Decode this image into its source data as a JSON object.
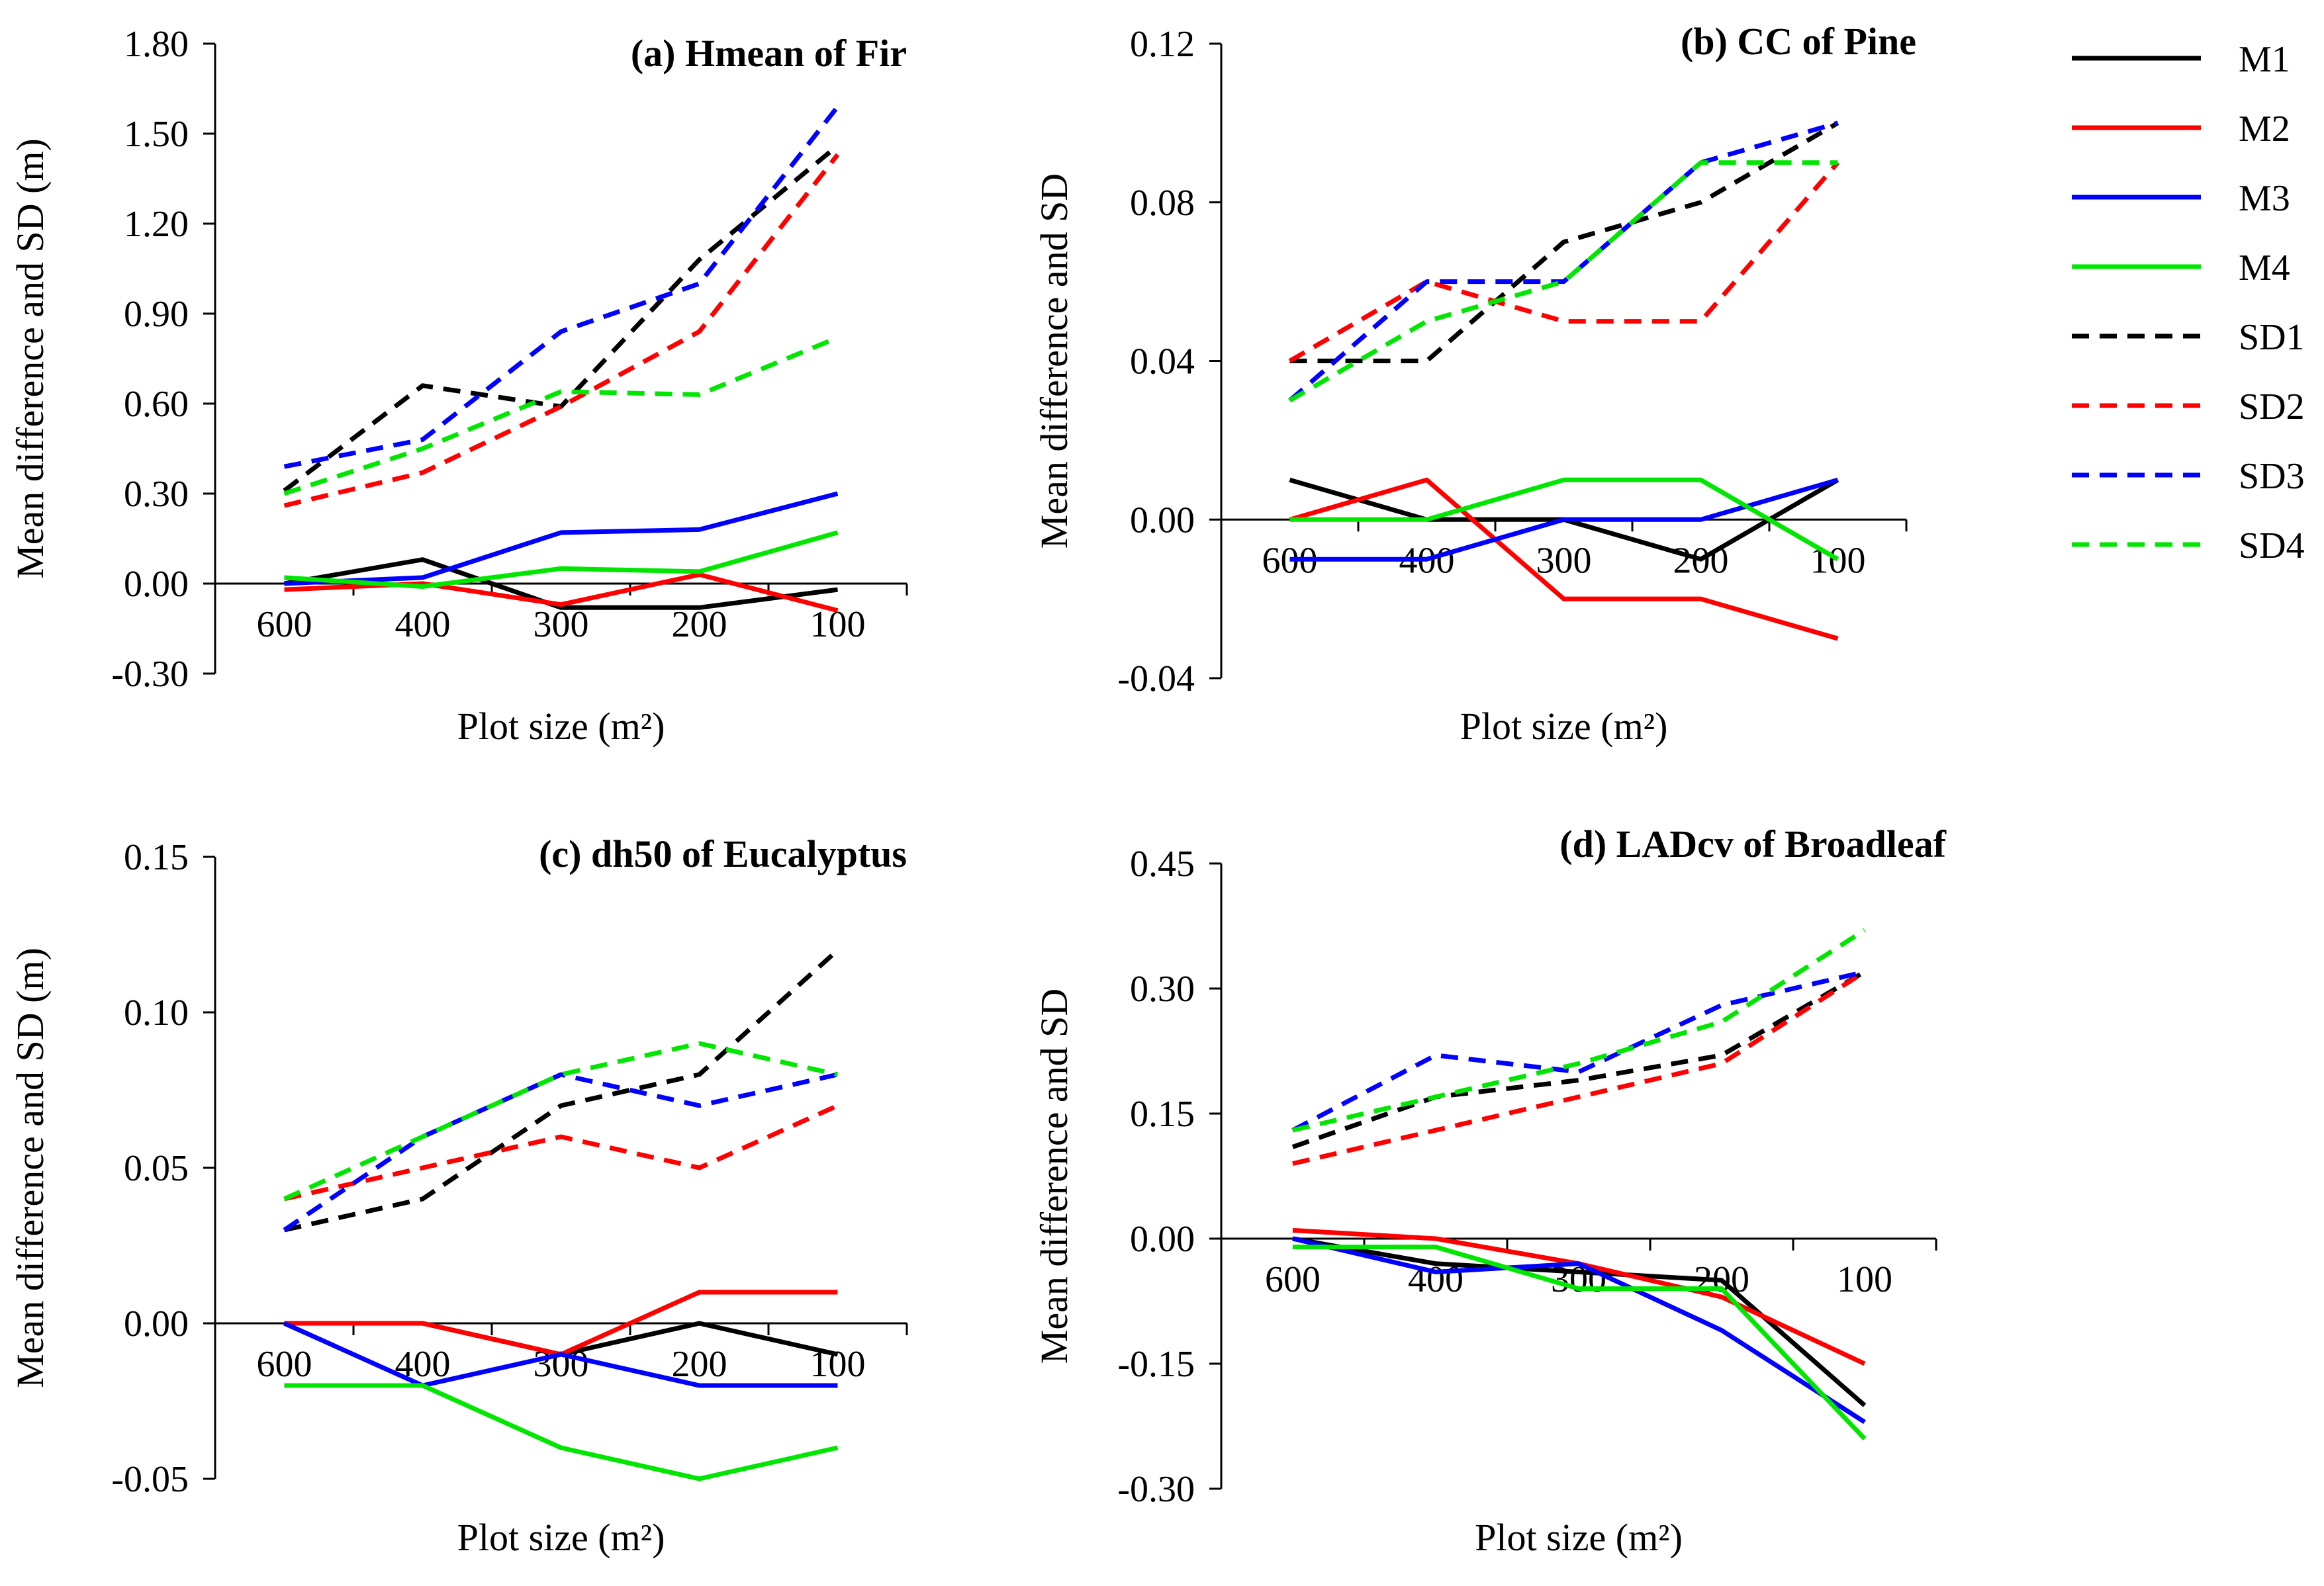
{
  "series_styles": [
    {
      "name": "M1",
      "color": "#000000",
      "dashed": false
    },
    {
      "name": "M2",
      "color": "#ff0000",
      "dashed": false
    },
    {
      "name": "M3",
      "color": "#0000ff",
      "dashed": false
    },
    {
      "name": "M4",
      "color": "#00e600",
      "dashed": false
    },
    {
      "name": "SD1",
      "color": "#000000",
      "dashed": true
    },
    {
      "name": "SD2",
      "color": "#ff0000",
      "dashed": true
    },
    {
      "name": "SD3",
      "color": "#0000ff",
      "dashed": true
    },
    {
      "name": "SD4",
      "color": "#00e600",
      "dashed": true
    }
  ],
  "chart_data": [
    {
      "type": "line",
      "title": "(a) Hmean of Fir",
      "xlabel": "Plot size (m²)",
      "ylabel": "Mean difference and SD (m)",
      "categories": [
        "600",
        "400",
        "300",
        "200",
        "100"
      ],
      "ylim": [
        -0.3,
        1.8
      ],
      "yticks": [
        "1.80",
        "1.50",
        "1.20",
        "0.90",
        "0.60",
        "0.30",
        "0.00",
        "-0.30"
      ],
      "series": [
        {
          "name": "M1",
          "values": [
            0.0,
            0.08,
            -0.08,
            -0.08,
            -0.02
          ]
        },
        {
          "name": "M2",
          "values": [
            -0.02,
            0.0,
            -0.07,
            0.03,
            -0.09
          ]
        },
        {
          "name": "M3",
          "values": [
            0.0,
            0.02,
            0.17,
            0.18,
            0.3
          ]
        },
        {
          "name": "M4",
          "values": [
            0.02,
            -0.01,
            0.05,
            0.04,
            0.17
          ]
        },
        {
          "name": "SD1",
          "values": [
            0.31,
            0.66,
            0.59,
            1.08,
            1.46
          ]
        },
        {
          "name": "SD2",
          "values": [
            0.26,
            0.37,
            0.59,
            0.84,
            1.43
          ]
        },
        {
          "name": "SD3",
          "values": [
            0.39,
            0.48,
            0.84,
            1.0,
            1.59
          ]
        },
        {
          "name": "SD4",
          "values": [
            0.3,
            0.45,
            0.64,
            0.63,
            0.82
          ]
        }
      ]
    },
    {
      "type": "line",
      "title": "(b) CC of Pine",
      "xlabel": "Plot size (m²)",
      "ylabel": "Mean difference and SD",
      "categories": [
        "600",
        "400",
        "300",
        "200",
        "100"
      ],
      "ylim": [
        -0.04,
        0.12
      ],
      "yticks": [
        "0.12",
        "0.08",
        "0.04",
        "0.00",
        "-0.04"
      ],
      "series": [
        {
          "name": "M1",
          "values": [
            0.01,
            0.0,
            0.0,
            -0.01,
            0.01
          ]
        },
        {
          "name": "M2",
          "values": [
            0.0,
            0.01,
            -0.02,
            -0.02,
            -0.03
          ]
        },
        {
          "name": "M3",
          "values": [
            -0.01,
            -0.01,
            0.0,
            0.0,
            0.01
          ]
        },
        {
          "name": "M4",
          "values": [
            0.0,
            0.0,
            0.01,
            0.01,
            -0.01
          ]
        },
        {
          "name": "SD1",
          "values": [
            0.04,
            0.04,
            0.07,
            0.08,
            0.1
          ]
        },
        {
          "name": "SD2",
          "values": [
            0.04,
            0.06,
            0.05,
            0.05,
            0.09
          ]
        },
        {
          "name": "SD3",
          "values": [
            0.03,
            0.06,
            0.06,
            0.09,
            0.1
          ]
        },
        {
          "name": "SD4",
          "values": [
            0.03,
            0.05,
            0.06,
            0.09,
            0.09
          ]
        }
      ]
    },
    {
      "type": "line",
      "title": "(c) dh50 of Eucalyptus",
      "xlabel": "Plot size (m²)",
      "ylabel": "Mean difference and SD (m)",
      "categories": [
        "600",
        "400",
        "300",
        "200",
        "100"
      ],
      "ylim": [
        -0.05,
        0.15
      ],
      "yticks": [
        "0.15",
        "0.10",
        "0.05",
        "0.00",
        "-0.05"
      ],
      "series": [
        {
          "name": "M1",
          "values": [
            0.0,
            0.0,
            -0.01,
            0.0,
            -0.01
          ]
        },
        {
          "name": "M2",
          "values": [
            0.0,
            0.0,
            -0.01,
            0.01,
            0.01
          ]
        },
        {
          "name": "M3",
          "values": [
            0.0,
            -0.02,
            -0.01,
            -0.02,
            -0.02
          ]
        },
        {
          "name": "M4",
          "values": [
            -0.02,
            -0.02,
            -0.04,
            -0.05,
            -0.04
          ]
        },
        {
          "name": "SD1",
          "values": [
            0.03,
            0.04,
            0.07,
            0.08,
            0.12
          ]
        },
        {
          "name": "SD2",
          "values": [
            0.04,
            0.05,
            0.06,
            0.05,
            0.07
          ]
        },
        {
          "name": "SD3",
          "values": [
            0.03,
            0.06,
            0.08,
            0.07,
            0.08
          ]
        },
        {
          "name": "SD4",
          "values": [
            0.04,
            0.06,
            0.08,
            0.09,
            0.08
          ]
        }
      ]
    },
    {
      "type": "line",
      "title": "(d)  LADcv of Broadleaf",
      "xlabel": "Plot size (m²)",
      "ylabel": "Mean difference and SD",
      "categories": [
        "600",
        "400",
        "300",
        "200",
        "100"
      ],
      "ylim": [
        -0.3,
        0.45
      ],
      "yticks": [
        "0.45",
        "0.30",
        "0.15",
        "0.00",
        "-0.15",
        "-0.30"
      ],
      "series": [
        {
          "name": "M1",
          "values": [
            0.0,
            -0.03,
            -0.04,
            -0.05,
            -0.2
          ]
        },
        {
          "name": "M2",
          "values": [
            0.01,
            0.0,
            -0.03,
            -0.07,
            -0.15
          ]
        },
        {
          "name": "M3",
          "values": [
            0.0,
            -0.04,
            -0.03,
            -0.11,
            -0.22
          ]
        },
        {
          "name": "M4",
          "values": [
            -0.01,
            -0.01,
            -0.06,
            -0.06,
            -0.24
          ]
        },
        {
          "name": "SD1",
          "values": [
            0.11,
            0.17,
            0.19,
            0.22,
            0.32
          ]
        },
        {
          "name": "SD2",
          "values": [
            0.09,
            0.13,
            0.17,
            0.21,
            0.32
          ]
        },
        {
          "name": "SD3",
          "values": [
            0.13,
            0.22,
            0.2,
            0.28,
            0.32
          ]
        },
        {
          "name": "SD4",
          "values": [
            0.13,
            0.17,
            0.21,
            0.26,
            0.37
          ]
        }
      ]
    }
  ]
}
